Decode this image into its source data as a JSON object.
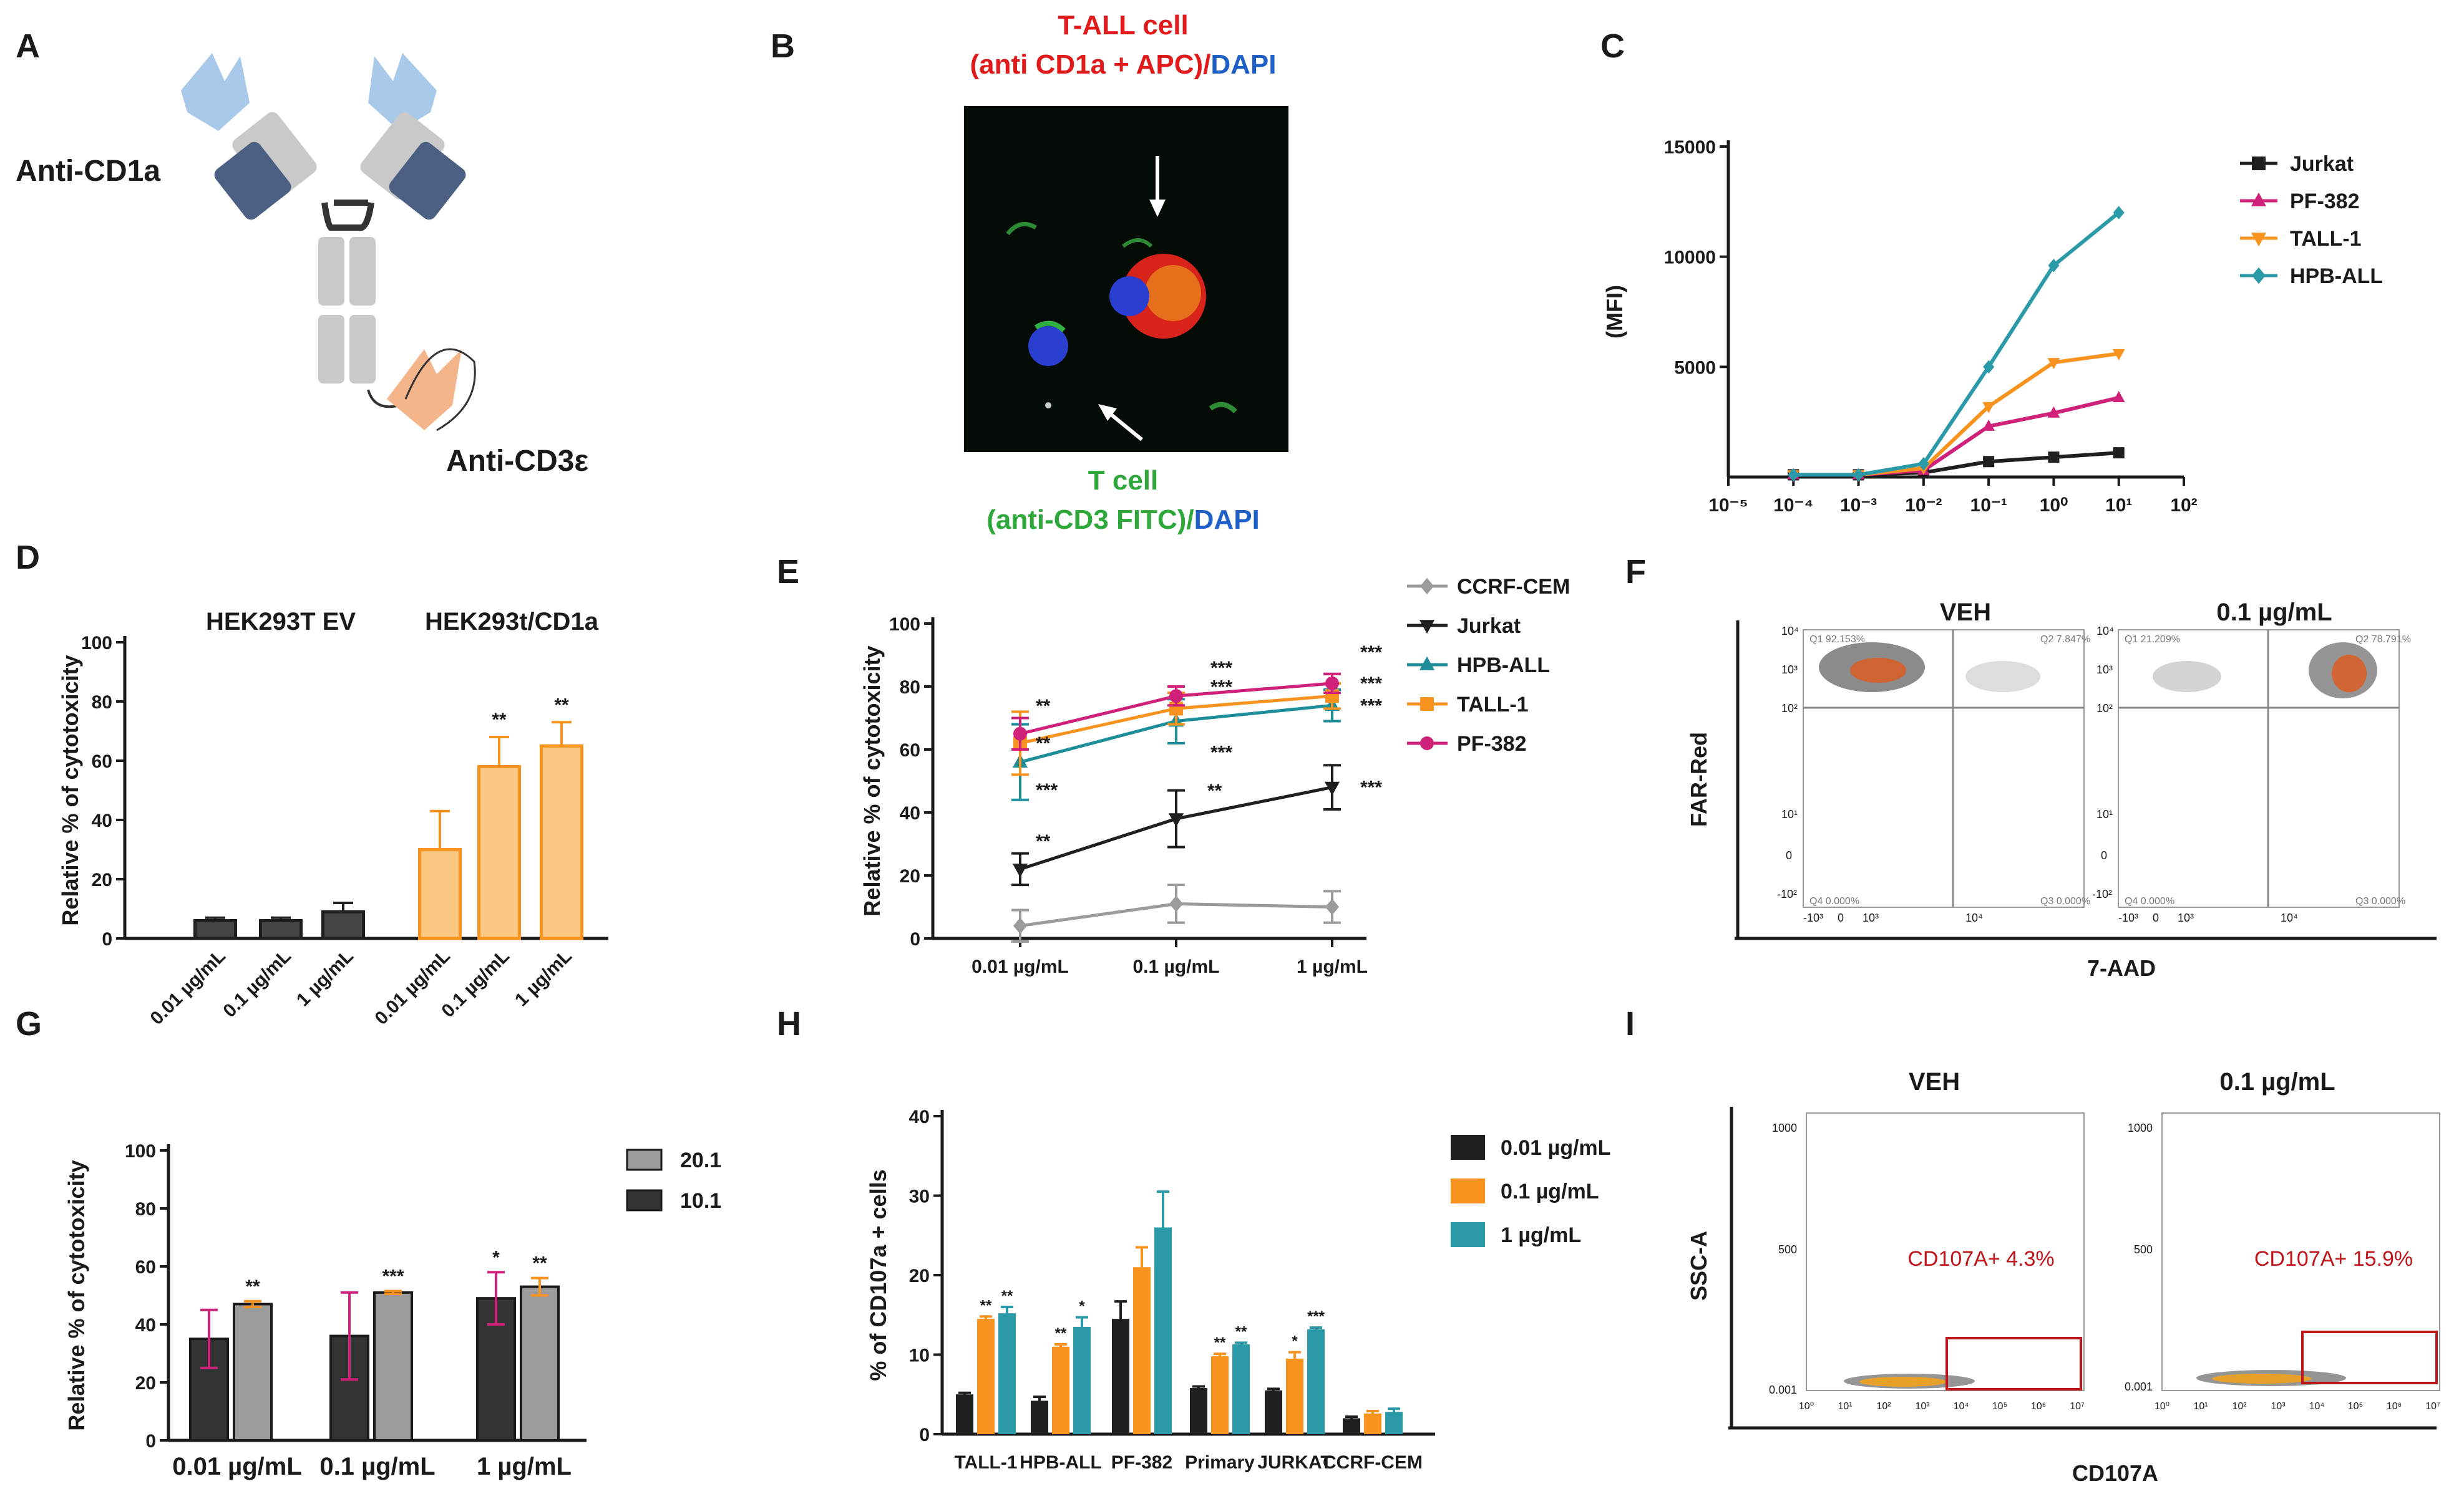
{
  "panel_letters": [
    "A",
    "B",
    "C",
    "D",
    "E",
    "F",
    "G",
    "H",
    "I"
  ],
  "colors": {
    "black": "#1f1f1f",
    "orange": "#f7931e",
    "magenta": "#d0217a",
    "teal": "#2a9aa8",
    "hpb": "#1e8e9a",
    "grey": "#9b9b9b",
    "red": "#e0191b",
    "green": "#2ea83a",
    "blue": "#1f5fc8",
    "cd1a_light": "#a9c9ea",
    "cd1a_dark": "#4b5f82",
    "fc_grey": "#c9c9c9",
    "cd3_orange": "#f5b58a"
  },
  "A": {
    "label_cd1a": "Anti-CD1a",
    "label_cd3": "Anti-CD3ε"
  },
  "B": {
    "top_line1": "T-ALL cell",
    "top_line2_red": "(anti CD1a + APC)/",
    "top_line2_blue": "DAPI",
    "bottom_line1": "T cell",
    "bottom_line2_green": "(anti-CD3 FITC)/",
    "bottom_line2_blue": "DAPI"
  },
  "F": {
    "titles": [
      "VEH",
      "0.1 µg/mL"
    ],
    "ylabel": "FAR-Red",
    "xlabel": "7-AAD",
    "y_ticks": [
      "10⁴",
      "10³",
      "10²",
      "10¹",
      "0",
      "-10²"
    ],
    "x_ticks": [
      "-10³",
      "0",
      "10³",
      "10⁴"
    ],
    "quadrants": [
      {
        "ul": "Q1 92.153%",
        "ur": "Q2 7.847%",
        "ll": "Q4 0.000%",
        "lr": "Q3 0.000%"
      },
      {
        "ul": "Q1 21.209%",
        "ur": "Q2 78.791%",
        "ll": "Q4 0.000%",
        "lr": "Q3 0.000%"
      }
    ]
  },
  "I": {
    "titles": [
      "VEH",
      "0.1 µg/mL"
    ],
    "ylabel": "SSC-A",
    "xlabel": "CD107A",
    "y_ticks": [
      "1000",
      "500",
      "0.001"
    ],
    "x_ticks": [
      "10⁰",
      "10¹",
      "10²",
      "10³",
      "10⁴",
      "10⁵",
      "10⁶",
      "10⁷"
    ],
    "gates": [
      "CD107A+ 4.3%",
      "CD107A+ 15.9%"
    ]
  },
  "chart_data": [
    {
      "panel": "C",
      "type": "line",
      "ylabel": "(MFI)",
      "xscale": "log",
      "x_ticks": [
        "10⁻⁵",
        "10⁻⁴",
        "10⁻³",
        "10⁻²",
        "10⁻¹",
        "10⁰",
        "10¹",
        "10²"
      ],
      "y_ticks": [
        "15000",
        "10000",
        "5000"
      ],
      "ylim": [
        0,
        15000
      ],
      "x": [
        0.0001,
        0.001,
        0.01,
        0.1,
        1,
        10
      ],
      "series": [
        {
          "name": "Jurkat",
          "values": [
            100,
            100,
            200,
            700,
            900,
            1100
          ]
        },
        {
          "name": "PF-382",
          "values": [
            100,
            100,
            300,
            2300,
            2900,
            3600
          ]
        },
        {
          "name": "TALL-1",
          "values": [
            100,
            100,
            400,
            3200,
            5200,
            5600
          ]
        },
        {
          "name": "HPB-ALL",
          "values": [
            100,
            100,
            600,
            5000,
            9600,
            12000
          ]
        }
      ]
    },
    {
      "panel": "D",
      "type": "bar",
      "ylabel": "Relative % of cytotoxicity",
      "ylim": [
        0,
        100
      ],
      "y_ticks": [
        "0",
        "20",
        "40",
        "60",
        "80",
        "100"
      ],
      "group_titles": [
        "HEK293T EV",
        "HEK293t/CD1a"
      ],
      "categories": [
        "0.01 µg/mL",
        "0.1 µg/mL",
        "1 µg/mL",
        "0.01 µg/mL",
        "0.1 µg/mL",
        "1 µg/mL"
      ],
      "values": [
        6,
        6,
        9,
        30,
        58,
        65
      ],
      "errors": [
        1,
        1,
        3,
        13,
        10,
        8
      ],
      "sig": [
        "",
        "",
        "",
        "",
        "**",
        "**"
      ]
    },
    {
      "panel": "E",
      "type": "line",
      "ylabel": "Relative % of cytotoxicity",
      "ylim": [
        0,
        100
      ],
      "y_ticks": [
        "0",
        "20",
        "40",
        "60",
        "80",
        "100"
      ],
      "categories": [
        "0.01 µg/mL",
        "0.1 µg/mL",
        "1 µg/mL"
      ],
      "series": [
        {
          "name": "CCRF-CEM",
          "values": [
            4,
            11,
            10
          ],
          "errors": [
            5,
            6,
            5
          ],
          "sig": [
            "",
            "",
            ""
          ]
        },
        {
          "name": "Jurkat",
          "values": [
            22,
            38,
            48
          ],
          "errors": [
            5,
            9,
            7
          ],
          "sig": [
            "**",
            "**",
            "***"
          ]
        },
        {
          "name": "HPB-ALL",
          "values": [
            56,
            69,
            74
          ],
          "errors": [
            12,
            7,
            5
          ],
          "sig": [
            "***",
            "***",
            "***"
          ]
        },
        {
          "name": "TALL-1",
          "values": [
            62,
            73,
            77
          ],
          "errors": [
            10,
            5,
            4
          ],
          "sig": [
            "**",
            "***",
            "***"
          ]
        },
        {
          "name": "PF-382",
          "values": [
            65,
            77,
            81
          ],
          "errors": [
            5,
            3,
            3
          ],
          "sig": [
            "**",
            "***",
            "***"
          ]
        }
      ]
    },
    {
      "panel": "G",
      "type": "bar",
      "ylabel": "Relative % of cytotoxicity",
      "ylim": [
        0,
        100
      ],
      "y_ticks": [
        "0",
        "20",
        "40",
        "60",
        "80",
        "100"
      ],
      "categories": [
        "0.01 µg/mL",
        "0.1 µg/mL",
        "1 µg/mL"
      ],
      "series": [
        {
          "name": "10.1",
          "values": [
            35,
            36,
            49
          ],
          "errors": [
            10,
            15,
            9
          ],
          "sig": [
            "",
            "",
            "*"
          ]
        },
        {
          "name": "20.1",
          "values": [
            47,
            51,
            53
          ],
          "errors": [
            1,
            0.5,
            3
          ],
          "sig": [
            "**",
            "***",
            "**"
          ]
        }
      ]
    },
    {
      "panel": "H",
      "type": "bar",
      "ylabel": "% of CD107a + cells",
      "ylim": [
        0,
        40
      ],
      "y_ticks": [
        "0",
        "10",
        "20",
        "30",
        "40"
      ],
      "categories": [
        "TALL-1",
        "HPB-ALL",
        "PF-382",
        "Primary",
        "JURKAT",
        "CCRF-CEM"
      ],
      "series": [
        {
          "name": "0.01 µg/mL",
          "values": [
            5,
            4.2,
            14.5,
            5.8,
            5.5,
            2
          ],
          "errors": [
            0.2,
            0.5,
            2.2,
            0.2,
            0.2,
            0.2
          ],
          "sig": [
            "",
            "",
            "",
            "",
            "",
            ""
          ]
        },
        {
          "name": "0.1 µg/mL",
          "values": [
            14.5,
            11,
            21,
            9.8,
            9.5,
            2.6
          ],
          "errors": [
            0.3,
            0.3,
            2.5,
            0.3,
            0.8,
            0.3
          ],
          "sig": [
            "**",
            "**",
            "",
            "**",
            "*",
            ""
          ]
        },
        {
          "name": "1 µg/mL",
          "values": [
            15.2,
            13.5,
            26,
            11.3,
            13.2,
            2.8
          ],
          "errors": [
            0.8,
            1.2,
            4.5,
            0.2,
            0.2,
            0.4
          ],
          "sig": [
            "**",
            "*",
            "",
            "**",
            "***",
            ""
          ]
        }
      ]
    }
  ]
}
